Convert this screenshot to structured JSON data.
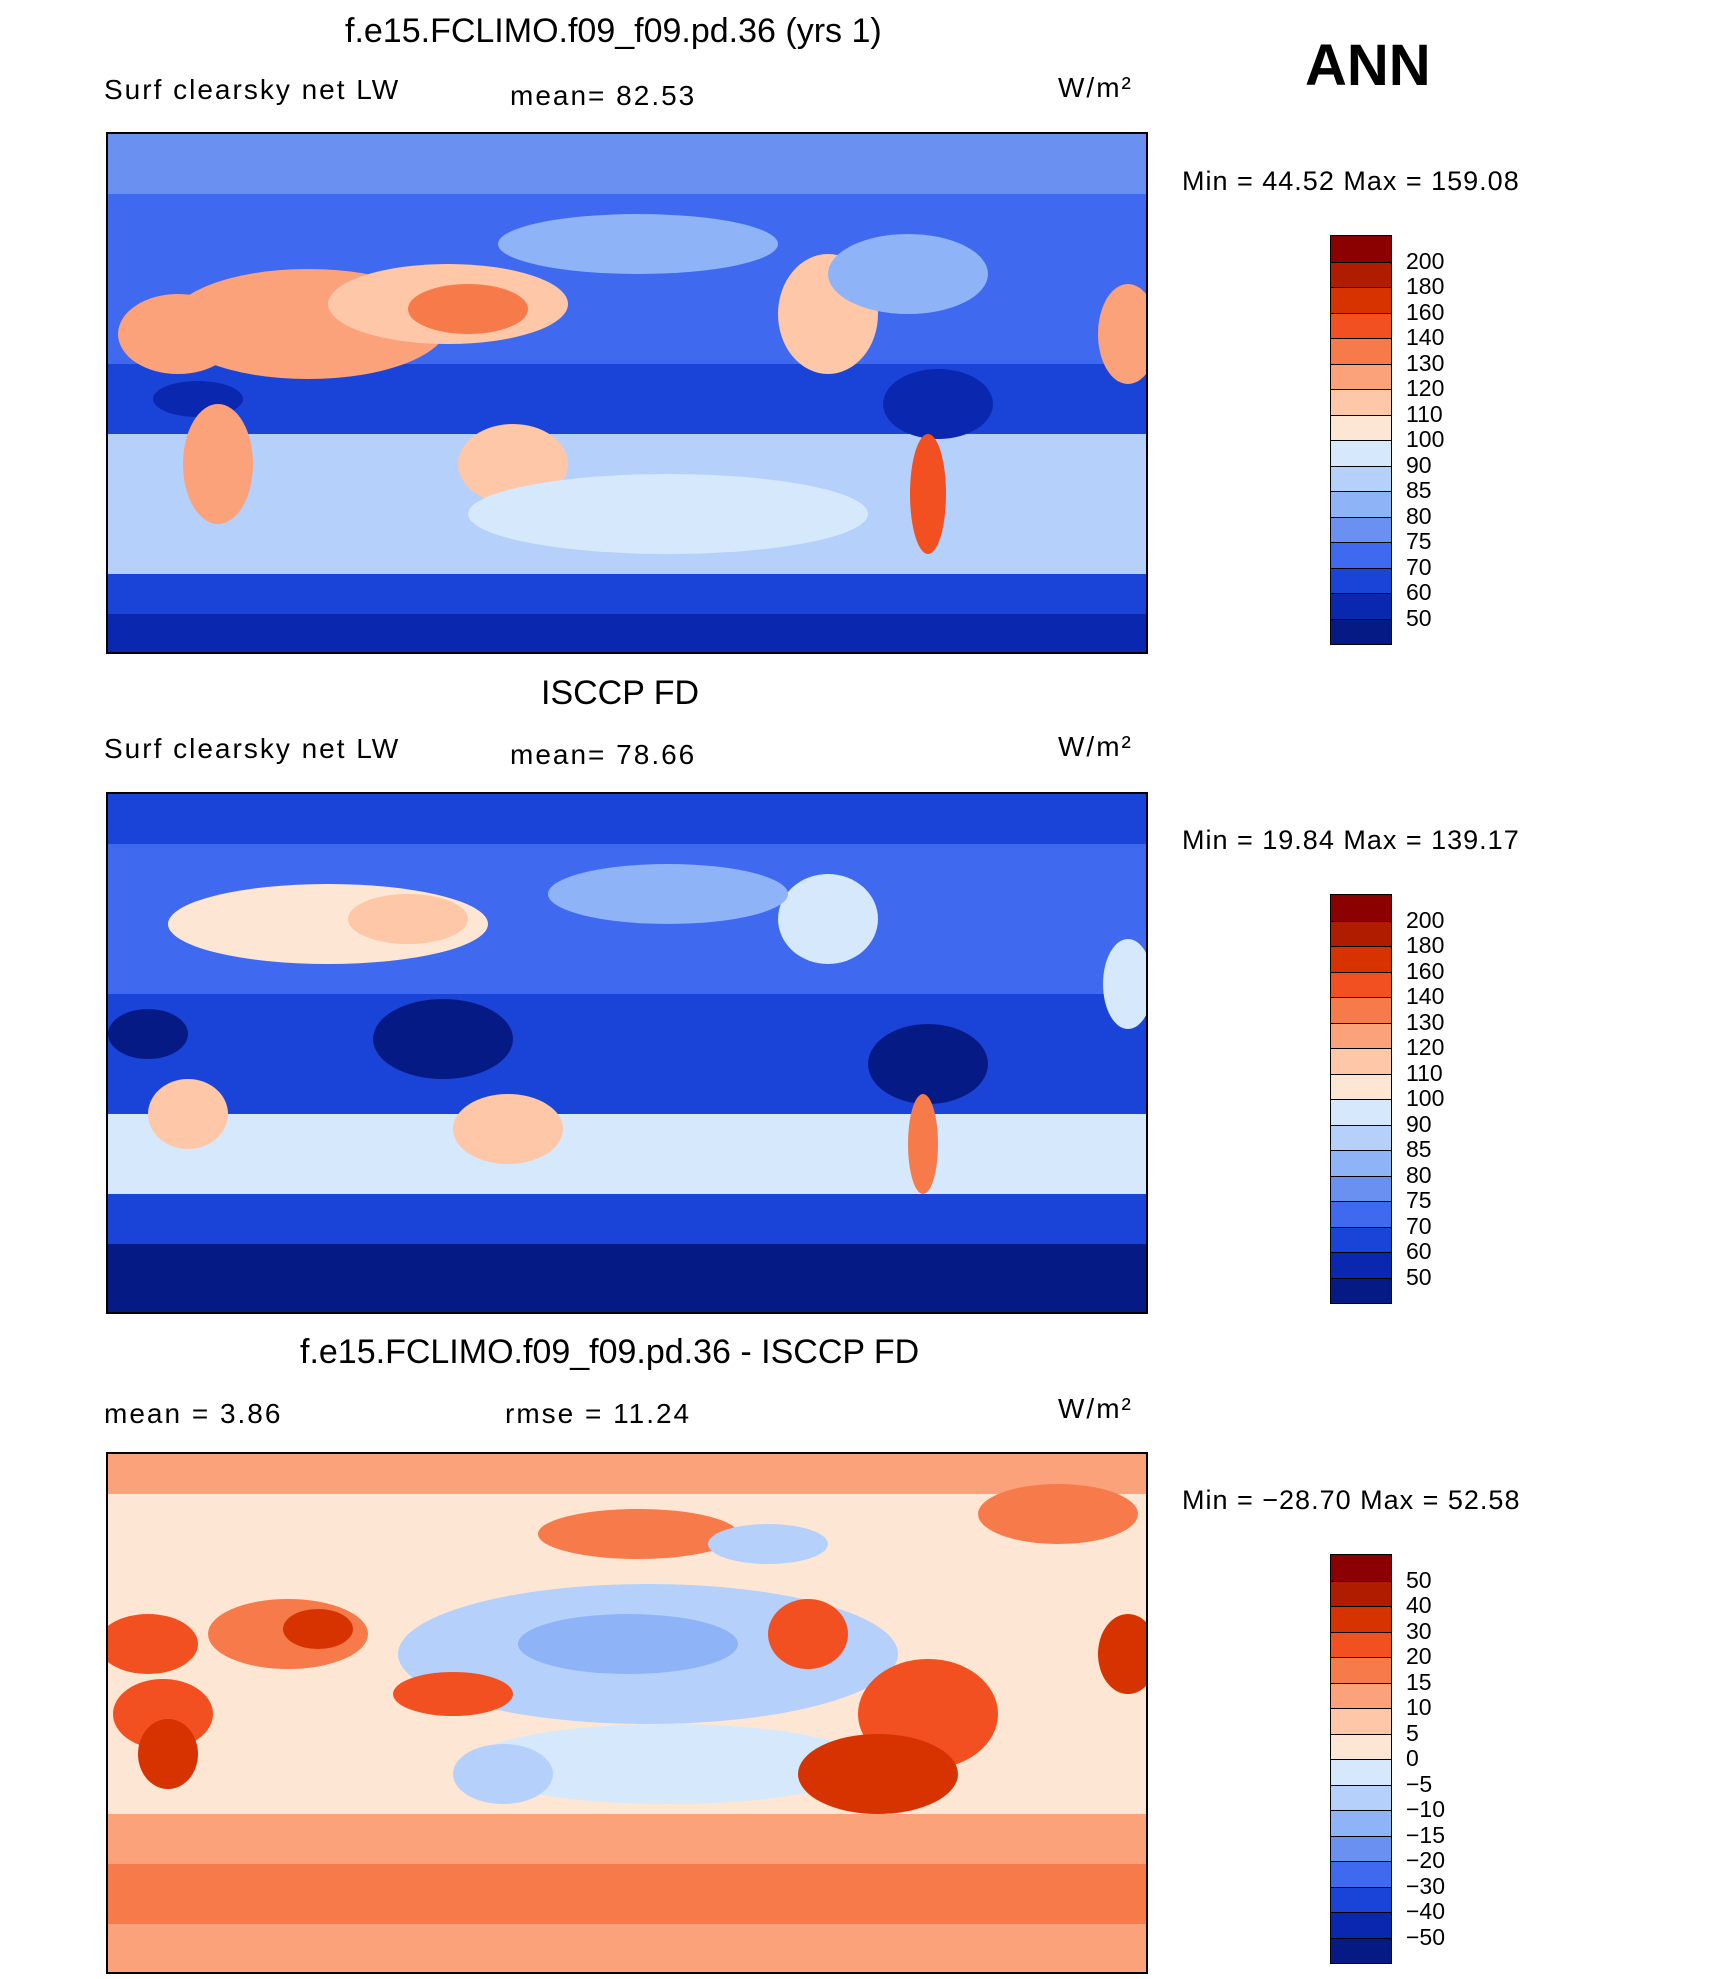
{
  "season": "ANN",
  "panels": [
    {
      "title": "f.e15.FCLIMO.f09_f09.pd.36 (yrs 1)",
      "left_label": "Surf  clearsky  net  LW",
      "center_label": "mean=   82.53",
      "units": "W/m²",
      "minmax": "Min  =    44.52  Max  =  159.08",
      "levels": [
        "200",
        "180",
        "160",
        "140",
        "130",
        "120",
        "110",
        "100",
        "90",
        "85",
        "80",
        "75",
        "70",
        "60",
        "50"
      ],
      "colors": [
        "#8b0000",
        "#b01c00",
        "#d63300",
        "#f25020",
        "#f77a4a",
        "#fba27a",
        "#fdc7a8",
        "#fde6d4",
        "#d6e8fb",
        "#b5d0fb",
        "#8fb3f7",
        "#6a91f2",
        "#3f6af0",
        "#1a44d8",
        "#0a27b0",
        "#061a85"
      ]
    },
    {
      "title": "ISCCP FD",
      "left_label": "Surf  clearsky  net  LW",
      "center_label": "mean=   78.66",
      "units": "W/m²",
      "minmax": "Min  =    19.84  Max  =  139.17",
      "levels": [
        "200",
        "180",
        "160",
        "140",
        "130",
        "120",
        "110",
        "100",
        "90",
        "85",
        "80",
        "75",
        "70",
        "60",
        "50"
      ],
      "colors": [
        "#8b0000",
        "#b01c00",
        "#d63300",
        "#f25020",
        "#f77a4a",
        "#fba27a",
        "#fdc7a8",
        "#fde6d4",
        "#d6e8fb",
        "#b5d0fb",
        "#8fb3f7",
        "#6a91f2",
        "#3f6af0",
        "#1a44d8",
        "#0a27b0",
        "#061a85"
      ]
    },
    {
      "title": "f.e15.FCLIMO.f09_f09.pd.36 - ISCCP FD",
      "left_label": "mean  =     3.86",
      "center_label": "rmse  =     11.24",
      "units": "W/m²",
      "minmax": "Min  = −28.70  Max  =    52.58",
      "levels": [
        "50",
        "40",
        "30",
        "20",
        "15",
        "10",
        "5",
        "0",
        "−5",
        "−10",
        "−15",
        "−20",
        "−30",
        "−40",
        "−50"
      ],
      "colors": [
        "#8b0000",
        "#b01c00",
        "#d63300",
        "#f25020",
        "#f77a4a",
        "#fba27a",
        "#fdc7a8",
        "#fde6d4",
        "#d6e8fb",
        "#b5d0fb",
        "#8fb3f7",
        "#6a91f2",
        "#3f6af0",
        "#1a44d8",
        "#0a27b0",
        "#061a85"
      ]
    }
  ]
}
